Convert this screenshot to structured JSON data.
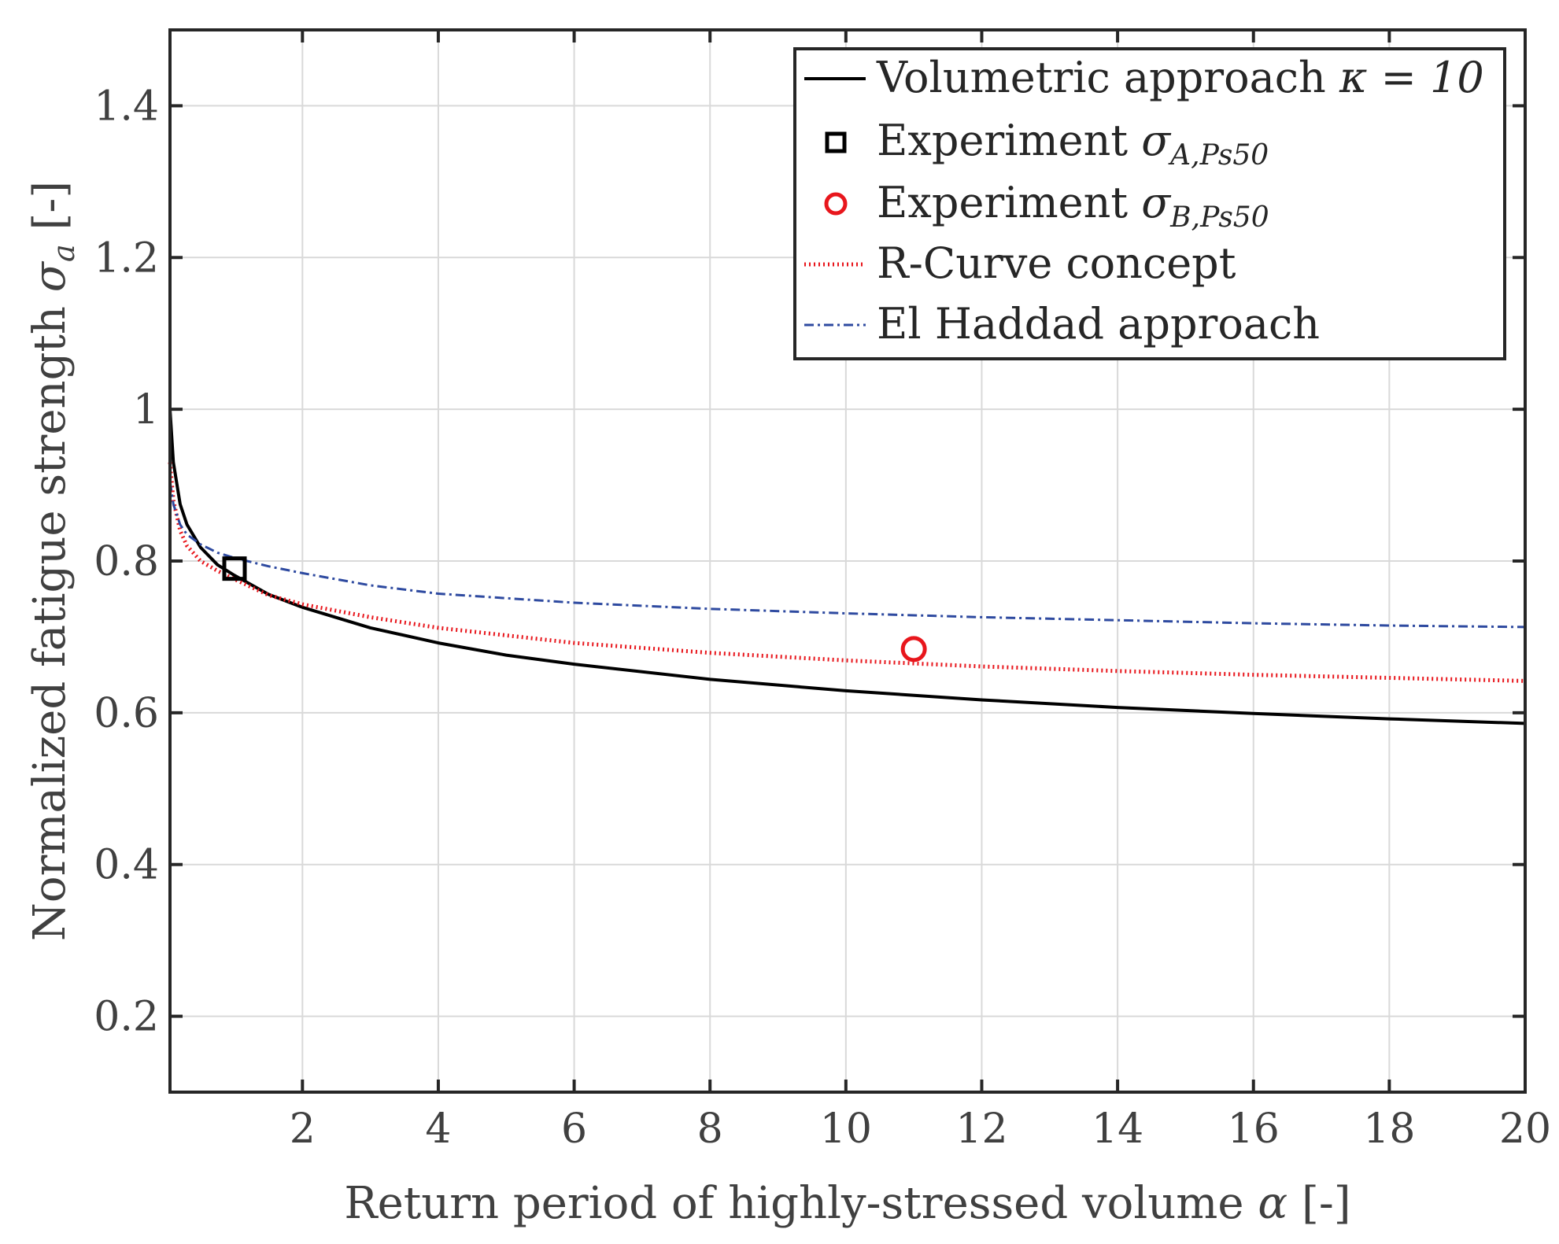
{
  "chart_data": {
    "type": "line",
    "xlabel_text": "Return period of highly-stressed volume ",
    "xlabel_symbol": "α",
    "xlabel_unit": " [-]",
    "ylabel_text": "Normalized fatigue strength ",
    "ylabel_symbol": "σ",
    "ylabel_sub": "a",
    "ylabel_unit": " [-]",
    "xlim": [
      0.05,
      20
    ],
    "ylim": [
      0.1,
      1.5
    ],
    "xticks": [
      2,
      4,
      6,
      8,
      10,
      12,
      14,
      16,
      18,
      20
    ],
    "yticks": [
      0.2,
      0.4,
      0.6,
      0.8,
      1.0,
      1.2,
      1.4
    ],
    "xtick_labels": [
      "2",
      "4",
      "6",
      "8",
      "10",
      "12",
      "14",
      "16",
      "18",
      "20"
    ],
    "ytick_labels": [
      "0.2",
      "0.4",
      "0.6",
      "0.8",
      "1",
      "1.2",
      "1.4"
    ],
    "grid": true,
    "legend_position": "top-right",
    "series": [
      {
        "name": "Volumetric approach κ = 10",
        "legend_text": "Volumetric approach ",
        "legend_math": "κ = 10",
        "style": "solid",
        "color": "#000000",
        "x": [
          0.05,
          0.1,
          0.2,
          0.3,
          0.5,
          0.75,
          1.0,
          1.5,
          2,
          3,
          4,
          5,
          6,
          8,
          10,
          12,
          14,
          16,
          18,
          20
        ],
        "y": [
          1.0,
          0.93,
          0.875,
          0.848,
          0.818,
          0.795,
          0.781,
          0.756,
          0.739,
          0.712,
          0.692,
          0.676,
          0.664,
          0.644,
          0.629,
          0.617,
          0.607,
          0.599,
          0.592,
          0.586
        ]
      },
      {
        "name": "R-Curve concept",
        "legend_text": "R-Curve concept",
        "style": "dotted",
        "color": "#e8161c",
        "x": [
          0.05,
          0.1,
          0.2,
          0.3,
          0.5,
          0.75,
          1.0,
          1.5,
          2,
          3,
          4,
          6,
          8,
          10,
          12,
          14,
          16,
          18,
          20
        ],
        "y": [
          0.93,
          0.88,
          0.84,
          0.82,
          0.8,
          0.787,
          0.776,
          0.755,
          0.743,
          0.726,
          0.712,
          0.692,
          0.679,
          0.669,
          0.661,
          0.655,
          0.65,
          0.646,
          0.642
        ]
      },
      {
        "name": "El Haddad approach",
        "legend_text": "El Haddad approach",
        "style": "dashdot",
        "color": "#2e4aa0",
        "x": [
          0.05,
          0.1,
          0.2,
          0.3,
          0.5,
          0.75,
          1.0,
          1.5,
          2,
          3,
          4,
          6,
          8,
          10,
          12,
          14,
          16,
          18,
          20
        ],
        "y": [
          0.905,
          0.875,
          0.848,
          0.835,
          0.822,
          0.811,
          0.804,
          0.793,
          0.784,
          0.768,
          0.757,
          0.745,
          0.737,
          0.731,
          0.726,
          0.722,
          0.718,
          0.715,
          0.713
        ]
      }
    ],
    "points": [
      {
        "name": "Experiment σA,Ps50",
        "legend_text": "Experiment ",
        "legend_symbol": "σ",
        "legend_sub": "A,Ps50",
        "marker": "square",
        "color": "#000000",
        "x": 1.0,
        "y": 0.79
      },
      {
        "name": "Experiment σB,Ps50",
        "legend_text": "Experiment ",
        "legend_symbol": "σ",
        "legend_sub": "B,Ps50",
        "marker": "circle",
        "color": "#e8161c",
        "x": 11.0,
        "y": 0.684
      }
    ]
  }
}
